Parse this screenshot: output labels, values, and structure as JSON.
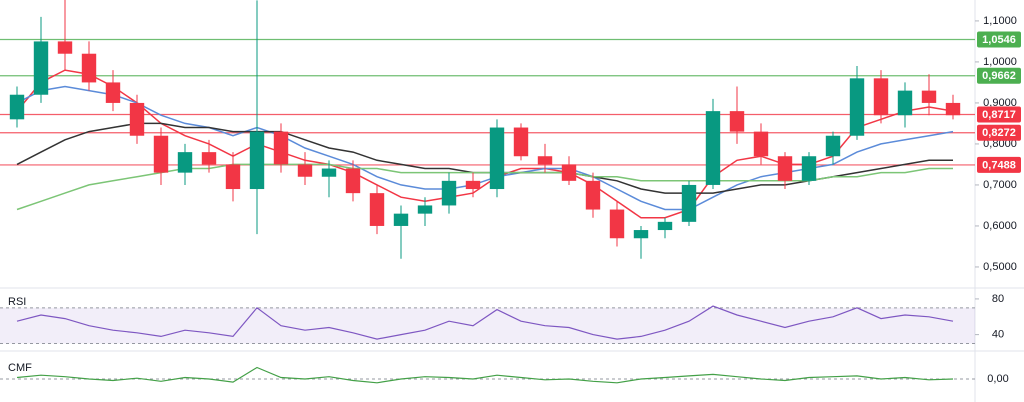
{
  "chart_data": [
    {
      "type": "candlestick",
      "open": [
        0.86,
        0.92,
        1.05,
        1.02,
        0.95,
        0.9,
        0.82,
        0.73,
        0.78,
        0.75,
        0.69,
        0.83,
        0.75,
        0.72,
        0.74,
        0.68,
        0.6,
        0.63,
        0.65,
        0.71,
        0.69,
        0.84,
        0.77,
        0.75,
        0.71,
        0.64,
        0.57,
        0.59,
        0.61,
        0.7,
        0.88,
        0.83,
        0.77,
        0.71,
        0.77,
        0.82,
        0.96,
        0.87,
        0.93,
        0.9
      ],
      "high": [
        0.94,
        1.11,
        1.16,
        1.05,
        0.98,
        0.92,
        0.84,
        0.8,
        0.81,
        0.78,
        1.15,
        0.85,
        0.78,
        0.76,
        0.76,
        0.7,
        0.65,
        0.67,
        0.73,
        0.73,
        0.86,
        0.85,
        0.8,
        0.77,
        0.73,
        0.66,
        0.6,
        0.62,
        0.71,
        0.91,
        0.94,
        0.85,
        0.78,
        0.78,
        0.83,
        0.99,
        0.98,
        0.95,
        0.97,
        0.92
      ],
      "low": [
        0.84,
        0.9,
        0.98,
        0.93,
        0.88,
        0.8,
        0.7,
        0.7,
        0.73,
        0.66,
        0.58,
        0.73,
        0.7,
        0.67,
        0.66,
        0.58,
        0.52,
        0.6,
        0.63,
        0.67,
        0.67,
        0.76,
        0.73,
        0.7,
        0.62,
        0.55,
        0.52,
        0.57,
        0.6,
        0.69,
        0.8,
        0.75,
        0.69,
        0.7,
        0.75,
        0.81,
        0.85,
        0.84,
        0.87,
        0.86
      ],
      "close": [
        0.92,
        1.05,
        1.02,
        0.95,
        0.9,
        0.82,
        0.73,
        0.78,
        0.75,
        0.69,
        0.83,
        0.75,
        0.72,
        0.74,
        0.68,
        0.6,
        0.63,
        0.65,
        0.71,
        0.69,
        0.84,
        0.77,
        0.75,
        0.71,
        0.64,
        0.57,
        0.59,
        0.61,
        0.7,
        0.88,
        0.83,
        0.77,
        0.71,
        0.77,
        0.82,
        0.96,
        0.87,
        0.93,
        0.9,
        0.87
      ],
      "up_color": "#089981",
      "down_color": "#f23645",
      "lines": [
        {
          "color": "#f23645",
          "values": [
            0.88,
            0.95,
            0.98,
            0.97,
            0.94,
            0.9,
            0.85,
            0.82,
            0.8,
            0.77,
            0.8,
            0.78,
            0.76,
            0.75,
            0.73,
            0.7,
            0.67,
            0.66,
            0.67,
            0.68,
            0.72,
            0.74,
            0.74,
            0.73,
            0.7,
            0.66,
            0.62,
            0.62,
            0.64,
            0.72,
            0.76,
            0.77,
            0.75,
            0.75,
            0.77,
            0.84,
            0.86,
            0.88,
            0.89,
            0.88
          ]
        },
        {
          "color": "#5b8bd9",
          "values": [
            0.9,
            0.93,
            0.94,
            0.93,
            0.92,
            0.9,
            0.87,
            0.85,
            0.84,
            0.82,
            0.84,
            0.82,
            0.79,
            0.77,
            0.75,
            0.72,
            0.7,
            0.69,
            0.69,
            0.7,
            0.72,
            0.73,
            0.74,
            0.74,
            0.72,
            0.69,
            0.66,
            0.64,
            0.64,
            0.67,
            0.7,
            0.72,
            0.73,
            0.74,
            0.75,
            0.78,
            0.8,
            0.81,
            0.82,
            0.83
          ]
        },
        {
          "color": "#333333",
          "values": [
            0.75,
            0.78,
            0.81,
            0.83,
            0.84,
            0.85,
            0.85,
            0.84,
            0.84,
            0.83,
            0.83,
            0.83,
            0.81,
            0.79,
            0.78,
            0.76,
            0.75,
            0.74,
            0.74,
            0.73,
            0.73,
            0.73,
            0.73,
            0.73,
            0.72,
            0.71,
            0.69,
            0.68,
            0.68,
            0.68,
            0.69,
            0.7,
            0.7,
            0.71,
            0.72,
            0.73,
            0.74,
            0.75,
            0.76,
            0.76
          ]
        },
        {
          "color": "#7cc576",
          "values": [
            0.64,
            0.66,
            0.68,
            0.7,
            0.71,
            0.72,
            0.73,
            0.74,
            0.74,
            0.75,
            0.75,
            0.75,
            0.75,
            0.75,
            0.74,
            0.74,
            0.73,
            0.73,
            0.73,
            0.73,
            0.73,
            0.73,
            0.73,
            0.73,
            0.72,
            0.72,
            0.71,
            0.71,
            0.71,
            0.71,
            0.71,
            0.71,
            0.71,
            0.71,
            0.72,
            0.72,
            0.73,
            0.73,
            0.74,
            0.74
          ]
        }
      ],
      "levels": [
        {
          "value": 1.0546,
          "label": "1,0546",
          "color": "#4caf50"
        },
        {
          "value": 0.9662,
          "label": "0,9662",
          "color": "#4caf50"
        },
        {
          "value": 0.8717,
          "label": "0,8717",
          "color": "#f23645"
        },
        {
          "value": 0.8272,
          "label": "0,8272",
          "color": "#f23645"
        },
        {
          "value": 0.7488,
          "label": "0,7488",
          "color": "#f23645"
        }
      ],
      "ylim": [
        0.456,
        1.151
      ],
      "yticks": [
        {
          "value": 0.5,
          "label": "0,5000"
        },
        {
          "value": 0.6,
          "label": "0,6000"
        },
        {
          "value": 0.7,
          "label": "0,7000"
        },
        {
          "value": 0.8,
          "label": "0,8000"
        },
        {
          "value": 0.9,
          "label": "0,9000"
        },
        {
          "value": 1.0,
          "label": "1,0000"
        },
        {
          "value": 1.1,
          "label": "1,1000"
        }
      ]
    },
    {
      "type": "line",
      "title": "RSI",
      "color": "#7e57c2",
      "values": [
        55,
        62,
        58,
        50,
        45,
        42,
        38,
        45,
        42,
        38,
        70,
        50,
        45,
        48,
        42,
        35,
        40,
        45,
        55,
        50,
        68,
        55,
        50,
        48,
        40,
        35,
        38,
        45,
        55,
        72,
        62,
        55,
        48,
        55,
        60,
        70,
        58,
        62,
        60,
        55
      ],
      "band": [
        30,
        70
      ],
      "ylim": [
        25,
        90
      ],
      "yticks": [
        40,
        80
      ]
    },
    {
      "type": "line",
      "title": "CMF",
      "color": "#43a047",
      "values": [
        0.02,
        0.05,
        0.03,
        0.0,
        -0.02,
        0.01,
        -0.03,
        0.02,
        0.0,
        -0.04,
        0.15,
        0.02,
        0.0,
        0.03,
        -0.02,
        -0.05,
        0.0,
        0.03,
        0.02,
        0.0,
        0.05,
        0.02,
        -0.01,
        0.0,
        -0.03,
        -0.05,
        0.0,
        0.02,
        0.04,
        0.06,
        0.03,
        0.0,
        -0.02,
        0.02,
        0.03,
        0.04,
        0.0,
        0.02,
        -0.01,
        0.0
      ],
      "ylim": [
        -0.3,
        0.3
      ],
      "yticks": [
        {
          "value": 0,
          "label": "0,00"
        }
      ]
    }
  ]
}
